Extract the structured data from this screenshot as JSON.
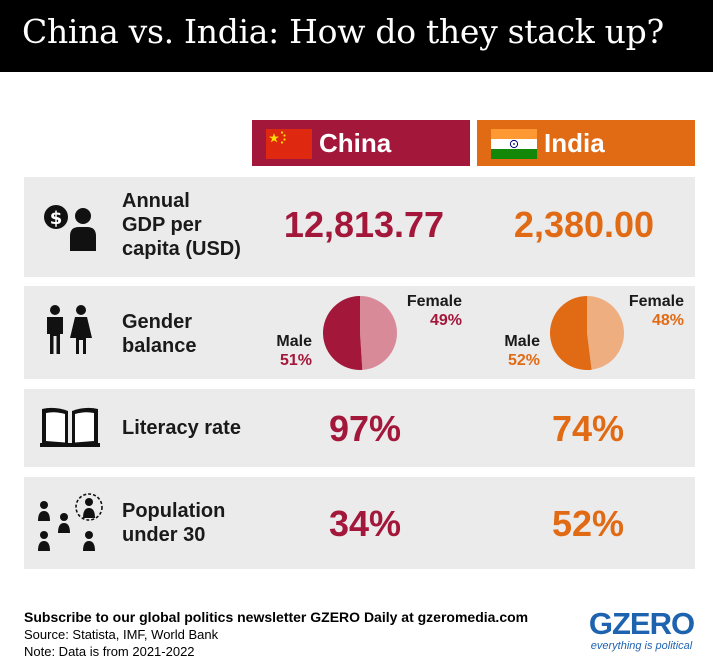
{
  "title": "China vs. India: How do they stack up?",
  "countries": {
    "china": {
      "name": "China",
      "color": "#A3173B",
      "flag_icon": "china-flag-icon"
    },
    "india": {
      "name": "India",
      "color": "#E16A15",
      "flag_icon": "india-flag-icon"
    }
  },
  "rows": {
    "gdp": {
      "icon": "money-person-icon",
      "label_lines": [
        "Annual",
        "GDP per",
        "capita (USD)"
      ],
      "china": "12,813.77",
      "india": "2,380.00"
    },
    "gender": {
      "icon": "man-woman-icon",
      "label_lines": [
        "Gender",
        "balance"
      ],
      "china": {
        "male_label": "Male",
        "male": 51,
        "male_text": "51%",
        "female_label": "Female",
        "female": 49,
        "female_text": "49%"
      },
      "india": {
        "male_label": "Male",
        "male": 52,
        "male_text": "52%",
        "female_label": "Female",
        "female": 48,
        "female_text": "48%"
      }
    },
    "literacy": {
      "icon": "open-book-icon",
      "label_lines": [
        "Literacy rate"
      ],
      "china": "97%",
      "india": "74%"
    },
    "population": {
      "icon": "people-group-icon",
      "label_lines": [
        "Population",
        "under 30"
      ],
      "china": "34%",
      "india": "52%"
    }
  },
  "footer": {
    "subscribe": "Subscribe to our global politics newsletter GZERO Daily at gzeromedia.com",
    "source": "Source: Statista, IMF, World Bank",
    "note": "Note: Data is from 2021-2022"
  },
  "logo": {
    "name": "GZERO",
    "tagline": "everything is political"
  },
  "colors": {
    "china_light": "#D88A99",
    "india_light": "#EEAE80",
    "row_bg": "#EBEBEB",
    "logo_blue": "#1E63B0"
  }
}
